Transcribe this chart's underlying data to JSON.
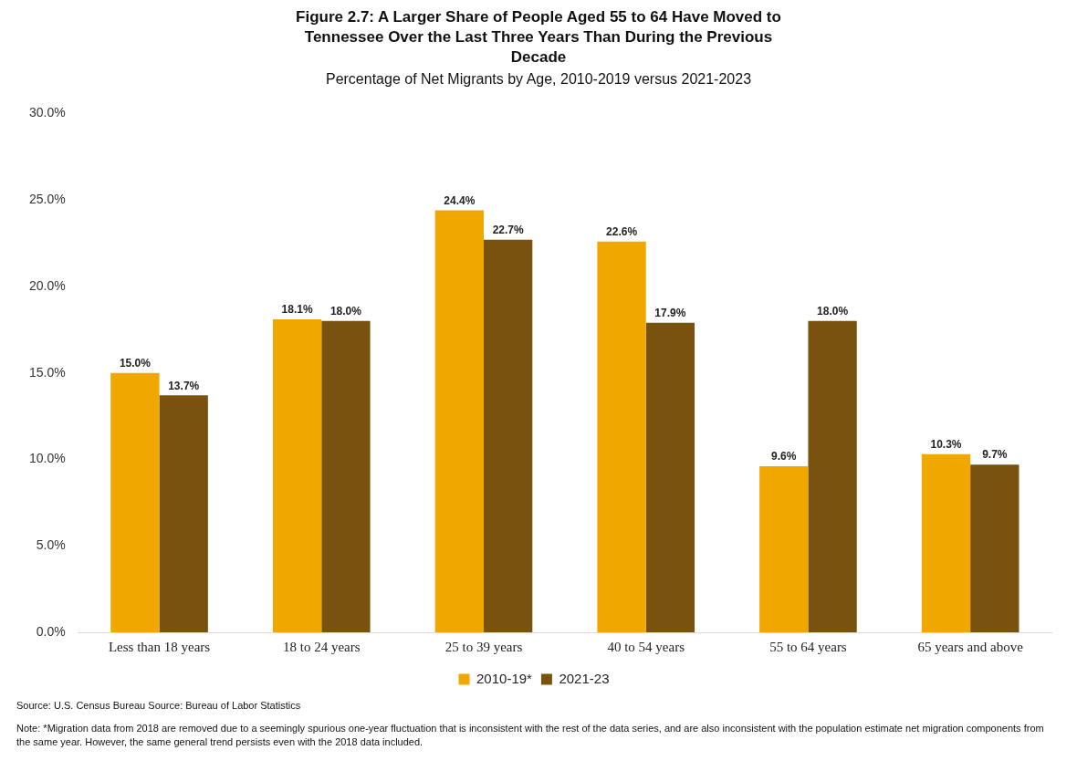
{
  "chart_data": {
    "type": "bar",
    "title": "Figure 2.7: A Larger Share of People Aged 55 to 64 Have Moved to Tennessee Over the Last Three Years Than During the Previous Decade",
    "subtitle": "Percentage of Net Migrants by Age, 2010-2019 versus 2021-2023",
    "categories": [
      "Less than 18 years",
      "18 to 24 years",
      "25 to 39 years",
      "40 to 54 years",
      "55 to 64 years",
      "65 years and above"
    ],
    "series": [
      {
        "name": "2010-19*",
        "color": "#f0a800",
        "values": [
          15.0,
          18.1,
          24.4,
          22.6,
          9.6,
          10.3
        ],
        "value_labels": [
          "15.0%",
          "18.1%",
          "24.4%",
          "22.6%",
          "9.6%",
          "10.3%"
        ]
      },
      {
        "name": "2021-23",
        "color": "#7a5210",
        "values": [
          13.7,
          18.0,
          22.7,
          17.9,
          18.0,
          9.7
        ],
        "value_labels": [
          "13.7%",
          "18.0%",
          "22.7%",
          "17.9%",
          "18.0%",
          "9.7%"
        ]
      }
    ],
    "ylim": [
      0,
      30
    ],
    "yticks": [
      {
        "value": 0,
        "label": "0.0%"
      },
      {
        "value": 5,
        "label": "5.0%"
      },
      {
        "value": 10,
        "label": "10.0%"
      },
      {
        "value": 15,
        "label": "15.0%"
      },
      {
        "value": 20,
        "label": "20.0%"
      },
      {
        "value": 25,
        "label": "25.0%"
      },
      {
        "value": 30,
        "label": "30.0%"
      }
    ],
    "grid": false,
    "legend": "bottom",
    "annotations": [
      "Source: U.S. Census Bureau Source: Bureau of Labor Statistics",
      "Note: *Migration data from 2018 are removed due to a seemingly spurious one-year fluctuation that is inconsistent with the rest of the data series, and are also inconsistent with the population estimate net migration components from the same year. However, the same general trend persists even with the 2018 data included."
    ]
  }
}
